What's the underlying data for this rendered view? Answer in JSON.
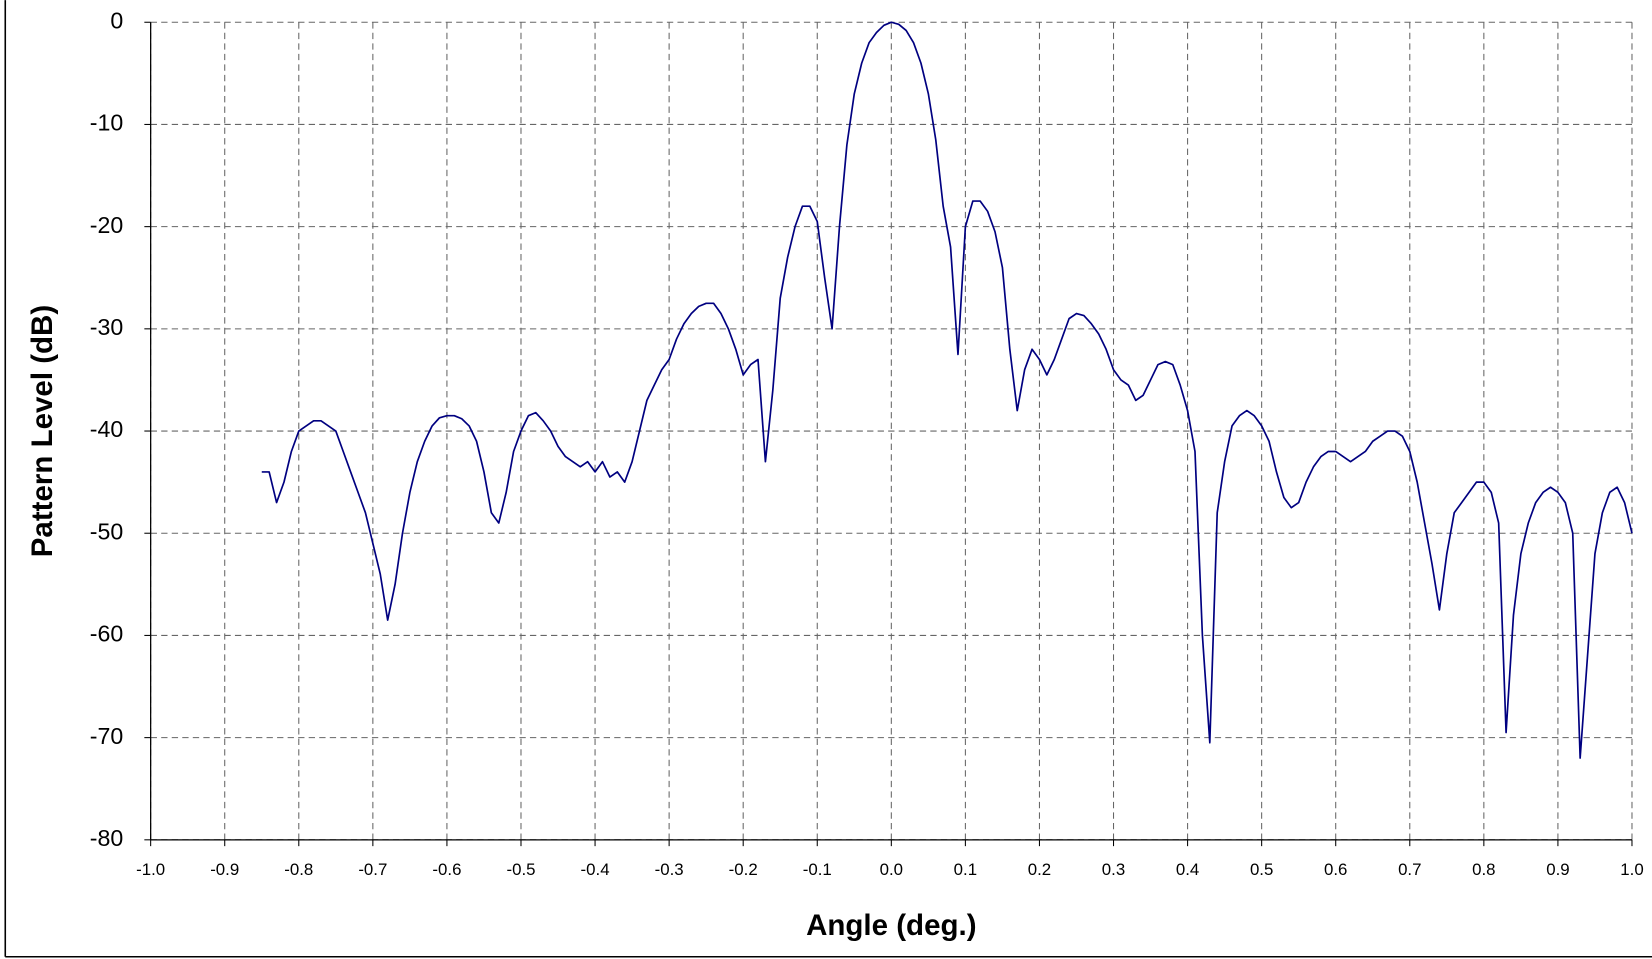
{
  "chart_data": {
    "type": "line",
    "x_label": "Angle (deg.)",
    "y_label": "Pattern Level (dB)",
    "xlim": [
      -1.0,
      1.0
    ],
    "ylim": [
      -80,
      0
    ],
    "xticks": [
      {
        "value": -1.0,
        "label": "-1.0"
      },
      -0.9,
      -0.8,
      -0.7,
      -0.6,
      -0.5,
      -0.4,
      -0.3,
      -0.2,
      -0.1,
      {
        "value": 0.0,
        "label": "0.0"
      },
      0.1,
      0.2,
      0.3,
      0.4,
      0.5,
      0.6,
      0.7,
      0.8,
      0.9,
      {
        "value": 1.0,
        "label": "1.0"
      }
    ],
    "yticks": [
      0,
      -10,
      -20,
      -30,
      -40,
      -50,
      -60,
      -70,
      -80
    ],
    "grid": true,
    "x": [
      -0.85,
      -0.84,
      -0.83,
      -0.82,
      -0.81,
      -0.8,
      -0.79,
      -0.78,
      -0.77,
      -0.76,
      -0.75,
      -0.74,
      -0.73,
      -0.72,
      -0.71,
      -0.7,
      -0.69,
      -0.68,
      -0.67,
      -0.66,
      -0.65,
      -0.64,
      -0.63,
      -0.62,
      -0.61,
      -0.6,
      -0.59,
      -0.58,
      -0.57,
      -0.56,
      -0.55,
      -0.54,
      -0.53,
      -0.52,
      -0.51,
      -0.5,
      -0.49,
      -0.48,
      -0.47,
      -0.46,
      -0.45,
      -0.44,
      -0.43,
      -0.42,
      -0.41,
      -0.4,
      -0.39,
      -0.38,
      -0.37,
      -0.36,
      -0.35,
      -0.34,
      -0.33,
      -0.32,
      -0.31,
      -0.3,
      -0.29,
      -0.28,
      -0.27,
      -0.26,
      -0.25,
      -0.24,
      -0.23,
      -0.22,
      -0.21,
      -0.2,
      -0.19,
      -0.18,
      -0.17,
      -0.16,
      -0.15,
      -0.14,
      -0.13,
      -0.12,
      -0.11,
      -0.1,
      -0.09,
      -0.08,
      -0.07,
      -0.06,
      -0.05,
      -0.04,
      -0.03,
      -0.02,
      -0.01,
      0,
      0.01,
      0.02,
      0.03,
      0.04,
      0.05,
      0.06,
      0.07,
      0.08,
      0.09,
      0.1,
      0.11,
      0.12,
      0.13,
      0.14,
      0.15,
      0.16,
      0.17,
      0.18,
      0.19,
      0.2,
      0.21,
      0.22,
      0.23,
      0.24,
      0.25,
      0.26,
      0.27,
      0.28,
      0.29,
      0.3,
      0.31,
      0.32,
      0.33,
      0.34,
      0.35,
      0.36,
      0.37,
      0.38,
      0.39,
      0.4,
      0.41,
      0.42,
      0.43,
      0.44,
      0.45,
      0.46,
      0.47,
      0.48,
      0.49,
      0.5,
      0.51,
      0.52,
      0.53,
      0.54,
      0.55,
      0.56,
      0.57,
      0.58,
      0.59,
      0.6,
      0.61,
      0.62,
      0.63,
      0.64,
      0.65,
      0.66,
      0.67,
      0.68,
      0.69,
      0.7,
      0.71,
      0.72,
      0.73,
      0.74,
      0.75,
      0.76,
      0.77,
      0.78,
      0.79,
      0.8,
      0.81,
      0.82,
      0.83,
      0.84,
      0.85,
      0.86,
      0.87,
      0.88,
      0.89,
      0.9,
      0.91,
      0.92,
      0.93,
      0.94,
      0.95,
      0.96,
      0.97,
      0.98,
      0.99,
      1.0
    ],
    "series": [
      {
        "color": "#000080",
        "values": [
          -44,
          -44,
          -47,
          -45,
          -42,
          -40,
          -39.5,
          -39,
          -39,
          -39.5,
          -40,
          -42,
          -44,
          -46,
          -48,
          -51,
          -54,
          -58.5,
          -55,
          -50,
          -46,
          -43,
          -41,
          -39.5,
          -38.7,
          -38.5,
          -38.5,
          -38.8,
          -39.5,
          -41,
          -44,
          -48,
          -49,
          -46,
          -42,
          -40,
          -38.5,
          -38.2,
          -39,
          -40,
          -41.5,
          -42.5,
          -43,
          -43.5,
          -43,
          -44,
          -43,
          -44.5,
          -44,
          -45,
          -43,
          -40,
          -37,
          -35.5,
          -34,
          -33,
          -31,
          -29.5,
          -28.5,
          -27.8,
          -27.5,
          -27.5,
          -28.5,
          -30,
          -32,
          -34.5,
          -33.5,
          -33,
          -43,
          -36,
          -27,
          -23,
          -20,
          -18,
          -18,
          -19.5,
          -25,
          -30,
          -20,
          -12,
          -7,
          -4,
          -2,
          -1,
          -0.3,
          0,
          -0.2,
          -0.8,
          -2,
          -4,
          -7,
          -11.5,
          -18,
          -22,
          -32.5,
          -20,
          -17.5,
          -17.5,
          -18.5,
          -20.5,
          -24,
          -32,
          -38,
          -34,
          -32,
          -33,
          -34.5,
          -33,
          -31,
          -29,
          -28.5,
          -28.7,
          -29.5,
          -30.5,
          -32,
          -34,
          -35,
          -35.5,
          -37,
          -36.5,
          -35,
          -33.5,
          -33.2,
          -33.5,
          -35.5,
          -38,
          -42,
          -60,
          -70.5,
          -48,
          -43,
          -39.5,
          -38.5,
          -38,
          -38.5,
          -39.5,
          -41,
          -44,
          -46.5,
          -47.5,
          -47,
          -45,
          -43.5,
          -42.5,
          -42,
          -42,
          -42.5,
          -43,
          -42.5,
          -42,
          -41,
          -40.5,
          -40,
          -40,
          -40.5,
          -42,
          -45,
          -49,
          -53,
          -57.5,
          -52,
          -48,
          -47,
          -46,
          -45,
          -45,
          -46,
          -49,
          -69.5,
          -58,
          -52,
          -49,
          -47,
          -46,
          -45.5,
          -46,
          -47,
          -50,
          -72,
          -62,
          -52,
          -48,
          -46,
          -45.5,
          -47,
          -50
        ]
      }
    ]
  }
}
